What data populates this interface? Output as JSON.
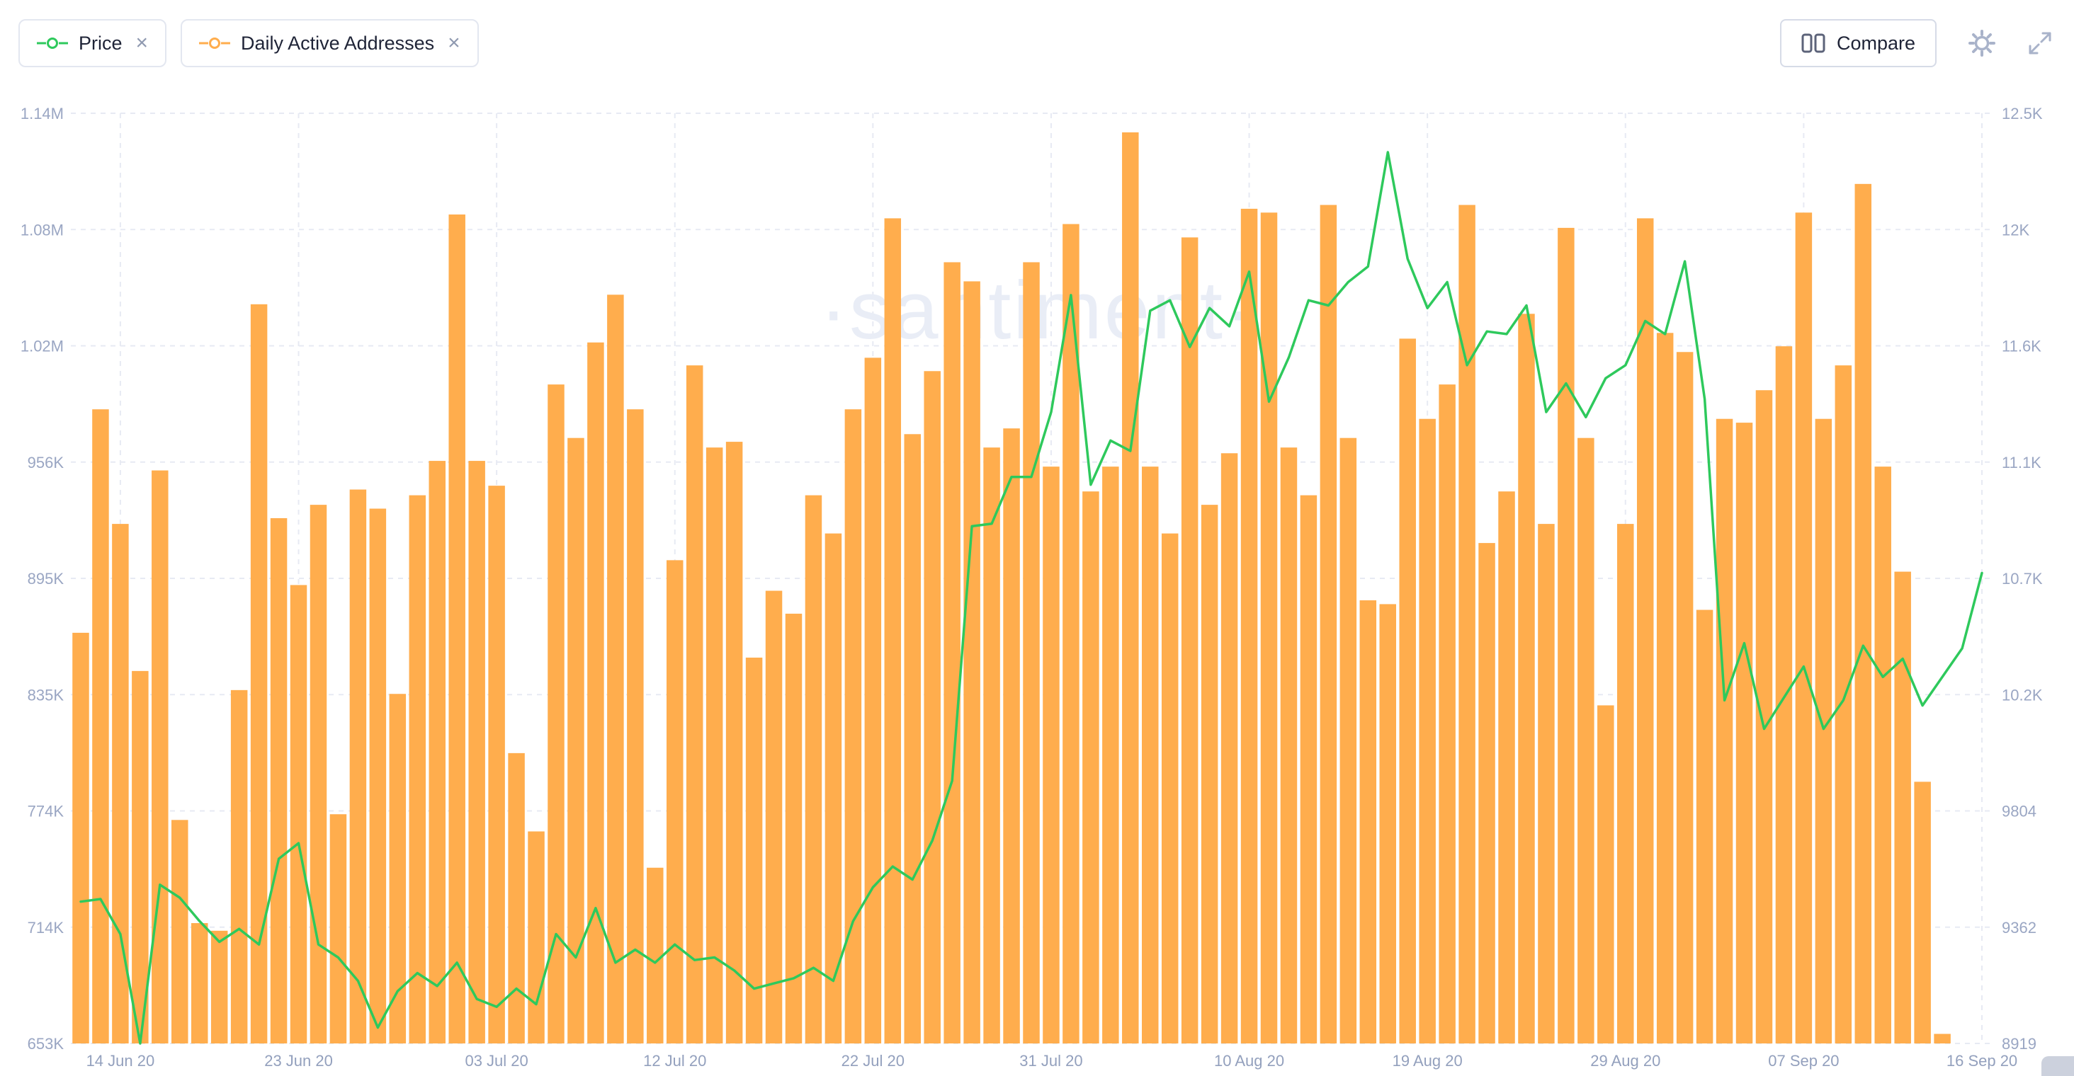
{
  "header": {
    "metrics": [
      {
        "label": "Price",
        "color": "#2ec95c",
        "close": "×"
      },
      {
        "label": "Daily Active Addresses",
        "color": "#ffad4d",
        "close": "×"
      }
    ],
    "compare_label": "Compare"
  },
  "watermark": "·santiment·",
  "colors": {
    "bar_orange": "#ffad4d",
    "line_green": "#2ec95c",
    "grid": "#e7eaf3",
    "axis_text": "#9aa6c3"
  },
  "chart_data": {
    "type": "combo-bar-line",
    "x_start": "12 Jun 20",
    "x_end": "16 Sep 20",
    "grid": true,
    "x_ticks": [
      {
        "index": 2,
        "label": "14 Jun 20"
      },
      {
        "index": 11,
        "label": "23 Jun 20"
      },
      {
        "index": 21,
        "label": "03 Jul 20"
      },
      {
        "index": 30,
        "label": "12 Jul 20"
      },
      {
        "index": 40,
        "label": "22 Jul 20"
      },
      {
        "index": 49,
        "label": "31 Jul 20"
      },
      {
        "index": 59,
        "label": "10 Aug 20"
      },
      {
        "index": 68,
        "label": "19 Aug 20"
      },
      {
        "index": 78,
        "label": "29 Aug 20"
      },
      {
        "index": 87,
        "label": "07 Sep 20"
      },
      {
        "index": 96,
        "label": "16 Sep 20"
      }
    ],
    "left_axis": {
      "series": "Daily Active Addresses",
      "min": 653000,
      "max": 1140000,
      "tick_labels": [
        "1.14M",
        "1.08M",
        "1.02M",
        "956K",
        "895K",
        "835K",
        "774K",
        "714K",
        "653K"
      ]
    },
    "right_axis": {
      "series": "Price",
      "min": 8919,
      "max": 12500,
      "tick_labels": [
        "12.5K",
        "12K",
        "11.6K",
        "11.1K",
        "10.7K",
        "10.2K",
        "9804",
        "9362",
        "8919"
      ]
    },
    "series": [
      {
        "name": "Daily Active Addresses",
        "type": "bar",
        "axis": "left",
        "color": "#ffad4d",
        "values": [
          868000,
          985000,
          925000,
          848000,
          953000,
          770000,
          716000,
          712000,
          838000,
          1040000,
          928000,
          893000,
          935000,
          773000,
          943000,
          933000,
          836000,
          940000,
          958000,
          1087000,
          958000,
          945000,
          805000,
          764000,
          998000,
          970000,
          1020000,
          1045000,
          985000,
          745000,
          906000,
          1008000,
          965000,
          968000,
          855000,
          890000,
          878000,
          940000,
          920000,
          985000,
          1012000,
          1085000,
          972000,
          1005000,
          1062000,
          1052000,
          965000,
          975000,
          1062000,
          955000,
          1082000,
          942000,
          955000,
          1130000,
          955000,
          920000,
          1075000,
          935000,
          962000,
          1090000,
          1088000,
          965000,
          940000,
          1092000,
          970000,
          885000,
          883000,
          1022000,
          980000,
          998000,
          1092000,
          915000,
          942000,
          1035000,
          925000,
          1080000,
          970000,
          830000,
          925000,
          1085000,
          1025000,
          1015000,
          880000,
          980000,
          978000,
          995000,
          1018000,
          1088000,
          980000,
          1008000,
          1103000,
          955000,
          900000,
          790000,
          658000,
          null,
          null
        ]
      },
      {
        "name": "Price",
        "type": "line",
        "axis": "right",
        "color": "#2ec95c",
        "values": [
          9465,
          9475,
          9340,
          8919,
          9530,
          9480,
          9390,
          9310,
          9360,
          9300,
          9630,
          9690,
          9300,
          9250,
          9160,
          8980,
          9120,
          9190,
          9140,
          9230,
          9090,
          9060,
          9130,
          9070,
          9340,
          9250,
          9440,
          9230,
          9280,
          9230,
          9300,
          9240,
          9250,
          9200,
          9130,
          9150,
          9170,
          9210,
          9160,
          9390,
          9520,
          9600,
          9550,
          9700,
          9930,
          10910,
          10920,
          11100,
          11100,
          11350,
          11800,
          11070,
          11240,
          11200,
          11740,
          11780,
          11600,
          11750,
          11680,
          11890,
          11390,
          11560,
          11780,
          11760,
          11850,
          11910,
          12350,
          11940,
          11750,
          11850,
          11530,
          11660,
          11650,
          11760,
          11350,
          11460,
          11330,
          11480,
          11530,
          11700,
          11650,
          11930,
          11400,
          10240,
          10460,
          10130,
          10250,
          10370,
          10130,
          10240,
          10450,
          10330,
          10400,
          10220,
          10330,
          10440,
          10730
        ]
      }
    ]
  }
}
